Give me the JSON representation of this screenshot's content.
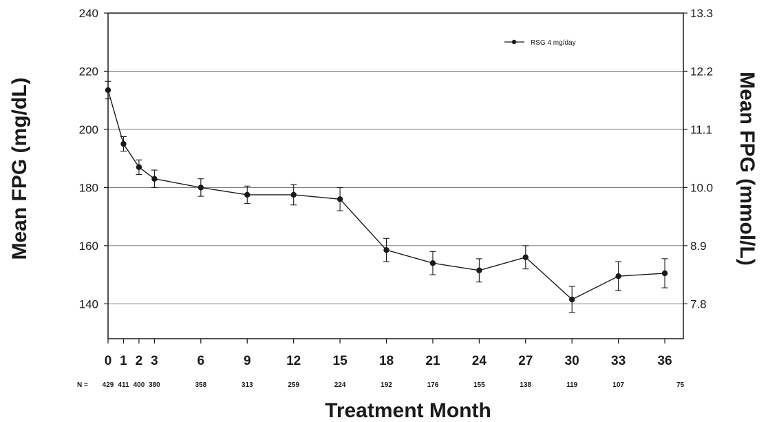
{
  "chart_data": {
    "type": "line",
    "xlabel": "Treatment Month",
    "ylabel": "Mean FPG (mg/dL)",
    "y2label": "Mean FPG (mmol/L)",
    "ylim": [
      128,
      240
    ],
    "y_ticks": [
      140,
      160,
      180,
      200,
      220,
      240
    ],
    "y2_ticks": [
      {
        "label": "7.8",
        "at": 140
      },
      {
        "label": "8.9",
        "at": 160
      },
      {
        "label": "10.0",
        "at": 180
      },
      {
        "label": "11.1",
        "at": 200
      },
      {
        "label": "12.2",
        "at": 220
      },
      {
        "label": "13.3",
        "at": 240
      }
    ],
    "xlim": [
      0,
      37.2
    ],
    "x_ticks": [
      0,
      1,
      2,
      3,
      6,
      9,
      12,
      15,
      18,
      21,
      24,
      27,
      30,
      33,
      36
    ],
    "grid": "horizontal",
    "legend_position": "top-right",
    "series": [
      {
        "name": "RSG 4 mg/day",
        "x": [
          0,
          1,
          2,
          3,
          6,
          9,
          12,
          15,
          18,
          21,
          24,
          27,
          30,
          33,
          36
        ],
        "y": [
          213.5,
          195,
          187,
          183,
          180,
          177.5,
          177.5,
          176,
          158.5,
          154,
          151.5,
          156,
          141.5,
          149.5,
          150.5
        ],
        "error": [
          3,
          2.5,
          2.5,
          3,
          3,
          3,
          3.5,
          4,
          4,
          4,
          4,
          4,
          4.5,
          5,
          5
        ]
      }
    ],
    "n_label": "N =",
    "n_counts": [
      {
        "x": 0,
        "value": "429"
      },
      {
        "x": 1,
        "value": "411"
      },
      {
        "x": 2,
        "value": "400"
      },
      {
        "x": 3,
        "value": "380"
      },
      {
        "x": 6,
        "value": "358"
      },
      {
        "x": 9,
        "value": "313"
      },
      {
        "x": 12,
        "value": "259"
      },
      {
        "x": 15,
        "value": "224"
      },
      {
        "x": 18,
        "value": "192"
      },
      {
        "x": 21,
        "value": "176"
      },
      {
        "x": 24,
        "value": "155"
      },
      {
        "x": 27,
        "value": "138"
      },
      {
        "x": 30,
        "value": "119"
      },
      {
        "x": 33,
        "value": "107"
      },
      {
        "x": 37,
        "value": "75"
      }
    ]
  },
  "colors": {
    "line": "#1a1a1a",
    "grid": "#6a6a6a",
    "frame": "#1a1a1a",
    "background": "#ffffff"
  }
}
